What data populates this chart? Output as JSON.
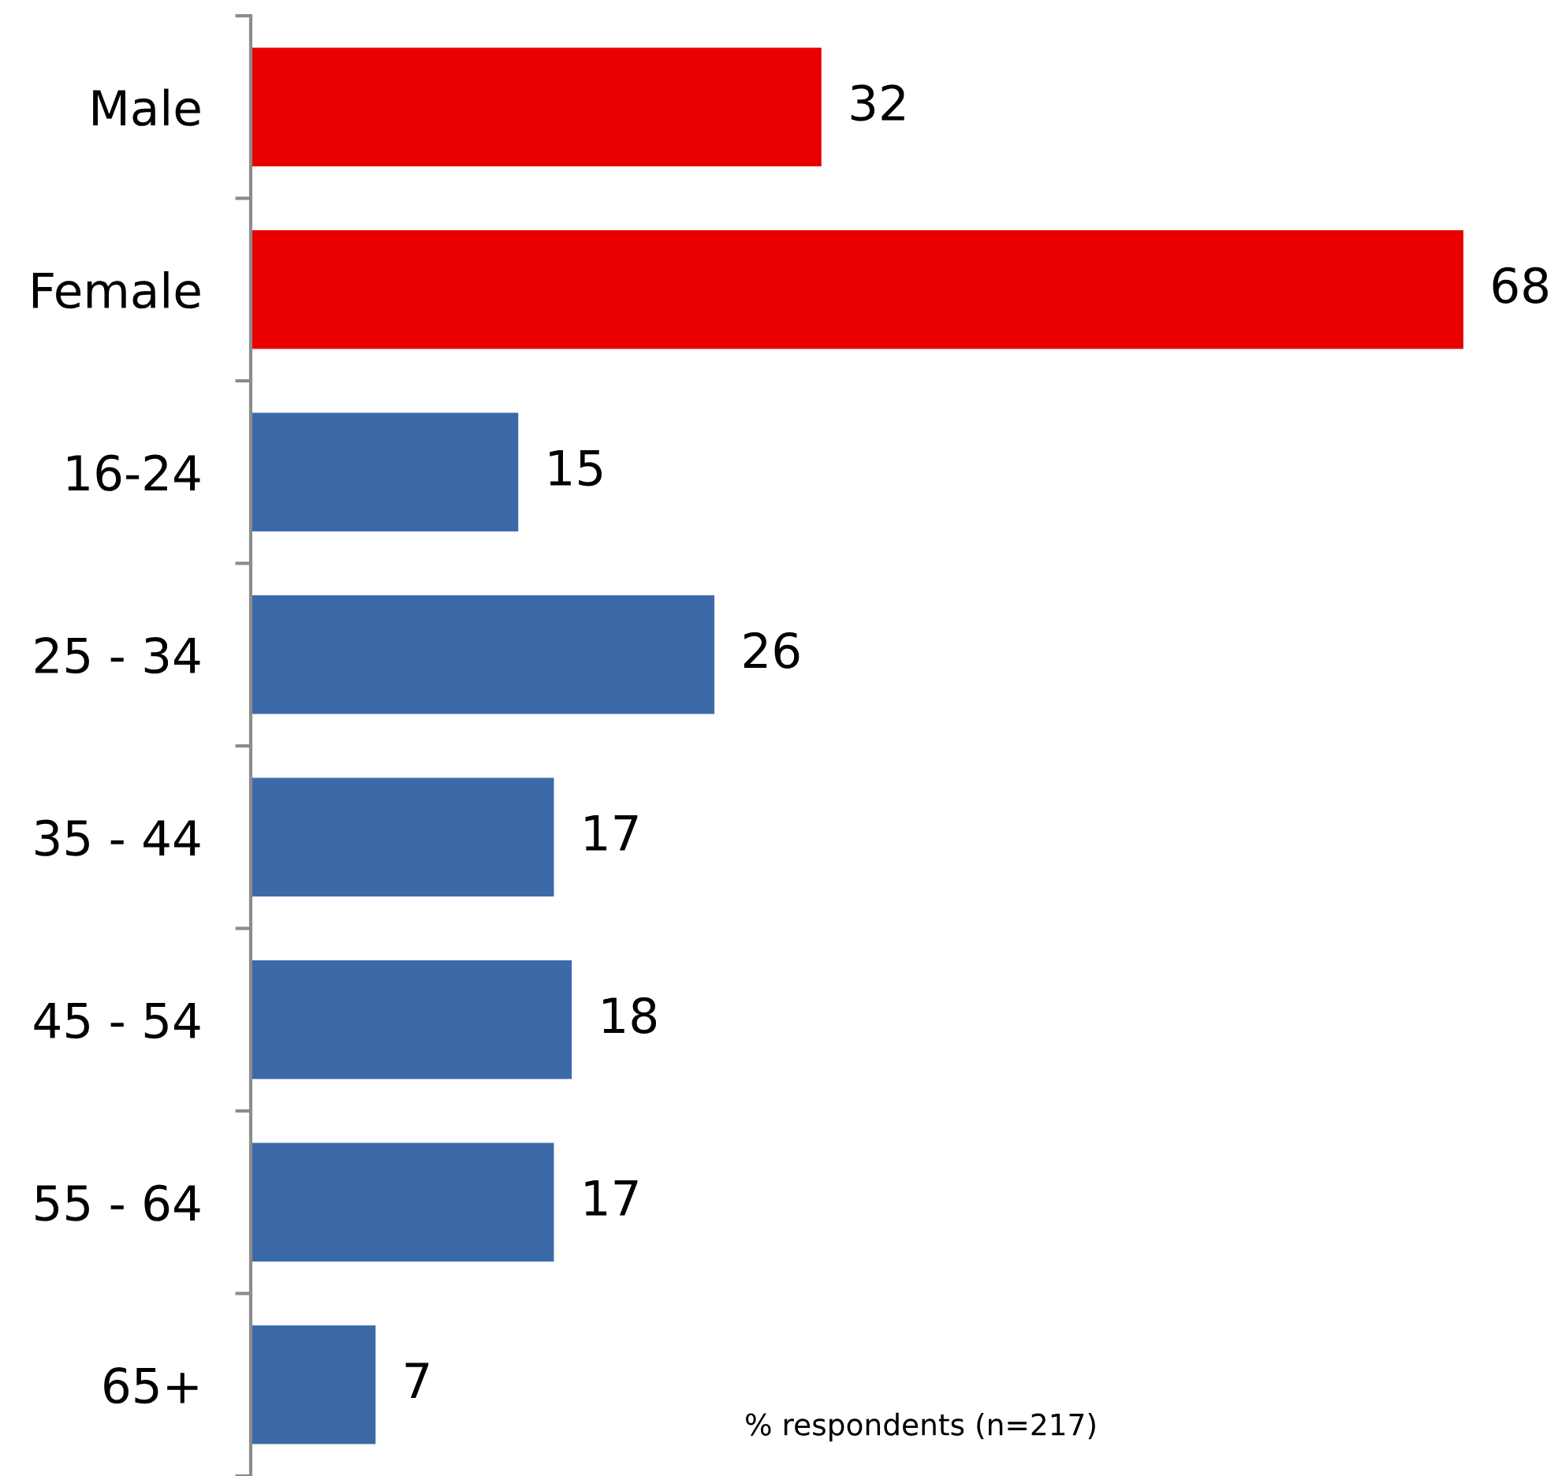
{
  "chart_data": {
    "type": "bar",
    "orientation": "horizontal",
    "categories": [
      "Male",
      "Female",
      "16-24",
      "25 - 34",
      "35 - 44",
      "45 - 54",
      "55 - 64",
      "65+"
    ],
    "values": [
      32,
      68,
      15,
      26,
      17,
      18,
      17,
      7
    ],
    "colors": [
      "#e80000",
      "#e80000",
      "#3c6aa8",
      "#3c6aa8",
      "#3c6aa8",
      "#3c6aa8",
      "#3c6aa8",
      "#3c6aa8"
    ],
    "data_labels": true,
    "tick_labels": "y",
    "grid": false,
    "legend": false,
    "annotations": [
      "% respondents (n=217)"
    ]
  }
}
